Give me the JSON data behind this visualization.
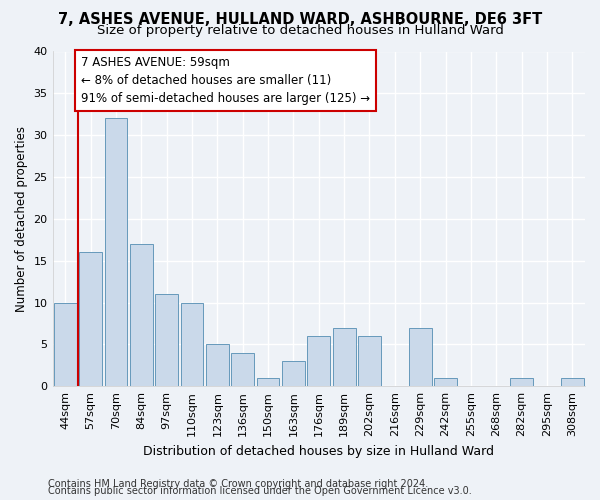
{
  "title": "7, ASHES AVENUE, HULLAND WARD, ASHBOURNE, DE6 3FT",
  "subtitle": "Size of property relative to detached houses in Hulland Ward",
  "xlabel": "Distribution of detached houses by size in Hulland Ward",
  "ylabel": "Number of detached properties",
  "footer1": "Contains HM Land Registry data © Crown copyright and database right 2024.",
  "footer2": "Contains public sector information licensed under the Open Government Licence v3.0.",
  "categories": [
    "44sqm",
    "57sqm",
    "70sqm",
    "84sqm",
    "97sqm",
    "110sqm",
    "123sqm",
    "136sqm",
    "150sqm",
    "163sqm",
    "176sqm",
    "189sqm",
    "202sqm",
    "216sqm",
    "229sqm",
    "242sqm",
    "255sqm",
    "268sqm",
    "282sqm",
    "295sqm",
    "308sqm"
  ],
  "values": [
    10,
    16,
    32,
    17,
    11,
    10,
    5,
    4,
    1,
    3,
    6,
    7,
    6,
    0,
    7,
    1,
    0,
    0,
    1,
    0,
    1
  ],
  "bar_color": "#cad9ea",
  "bar_edge_color": "#6699bb",
  "vline_color": "#cc0000",
  "vline_x": 0.5,
  "annotation_line1": "7 ASHES AVENUE: 59sqm",
  "annotation_line2": "← 8% of detached houses are smaller (11)",
  "annotation_line3": "91% of semi-detached houses are larger (125) →",
  "annotation_box_facecolor": "#ffffff",
  "annotation_box_edgecolor": "#cc0000",
  "ylim": [
    0,
    40
  ],
  "yticks": [
    0,
    5,
    10,
    15,
    20,
    25,
    30,
    35,
    40
  ],
  "bg_color": "#eef2f7",
  "grid_color": "#ffffff",
  "title_fontsize": 10.5,
  "subtitle_fontsize": 9.5,
  "axis_label_fontsize": 9,
  "tick_fontsize": 8,
  "footer_fontsize": 7,
  "ylabel_fontsize": 8.5
}
